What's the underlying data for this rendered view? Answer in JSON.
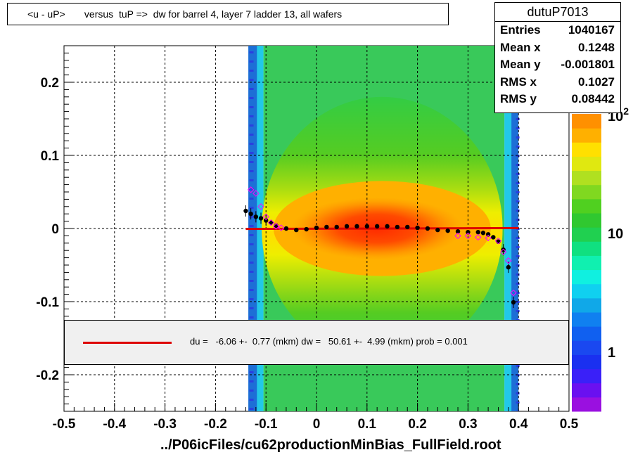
{
  "title": "<u - uP>       versus  tuP =>  dw for barrel 4, layer 7 ladder 13, all wafers",
  "stats": {
    "name": "dutuP7013",
    "rows": [
      {
        "label": "Entries",
        "value": "1040167"
      },
      {
        "label": "Mean x",
        "value": "0.1248"
      },
      {
        "label": "Mean y",
        "value": "-0.001801"
      },
      {
        "label": "RMS x",
        "value": "0.1027"
      },
      {
        "label": "RMS y",
        "value": "0.08442"
      }
    ]
  },
  "legend": {
    "text": "du =   -6.06 +-  0.77 (mkm) dw =   50.61 +-  4.99 (mkm) prob = 0.001",
    "line_color": "#dd0000"
  },
  "colors": {
    "fit_line": "#dd0000",
    "profile_points": "#000000",
    "open_markers": "#ff00ff"
  },
  "chart_data": {
    "type": "heatmap",
    "title": "<u - uP>       versus  tuP =>  dw for barrel 4, layer 7 ladder 13, all wafers",
    "xlabel": "../P06icFiles/cu62productionMinBias_FullField.root",
    "ylabel": "",
    "xlim": [
      -0.5,
      0.5
    ],
    "ylim": [
      -0.25,
      0.25
    ],
    "x_ticks": [
      "-0.5",
      "-0.4",
      "-0.3",
      "-0.2",
      "-0.1",
      "0",
      "0.1",
      "0.2",
      "0.3",
      "0.4",
      "0.5"
    ],
    "y_ticks": [
      "0.2",
      "0.1",
      "0",
      "-0.1",
      "-0.2"
    ],
    "grid": true,
    "color_scale": {
      "type": "log",
      "labels": [
        "1",
        "10",
        "10^2"
      ]
    },
    "fit_line": {
      "x": [
        -0.14,
        0.4
      ],
      "y": [
        -0.0006,
        0.0006
      ]
    },
    "profile": {
      "x": [
        -0.14,
        -0.13,
        -0.12,
        -0.11,
        -0.1,
        -0.09,
        -0.08,
        -0.06,
        -0.04,
        -0.02,
        0.0,
        0.02,
        0.04,
        0.06,
        0.08,
        0.1,
        0.12,
        0.14,
        0.16,
        0.18,
        0.2,
        0.22,
        0.24,
        0.26,
        0.28,
        0.3,
        0.32,
        0.33,
        0.34,
        0.35,
        0.36,
        0.37,
        0.38,
        0.39
      ],
      "y": [
        0.024,
        0.02,
        0.016,
        0.014,
        0.011,
        0.008,
        0.004,
        0.0,
        -0.002,
        -0.001,
        0.001,
        0.002,
        0.002,
        0.003,
        0.003,
        0.003,
        0.003,
        0.003,
        0.002,
        0.002,
        0.001,
        0.0,
        -0.002,
        -0.003,
        -0.004,
        -0.005,
        -0.005,
        -0.006,
        -0.008,
        -0.012,
        -0.018,
        -0.029,
        -0.053,
        -0.101
      ]
    },
    "open_points": {
      "x": [
        -0.13,
        -0.12,
        -0.11,
        -0.1,
        -0.09,
        -0.08,
        -0.07,
        0.28,
        0.3,
        0.32,
        0.34,
        0.36,
        0.37,
        0.38,
        0.39
      ],
      "y": [
        0.053,
        0.048,
        0.03,
        0.016,
        0.008,
        0.003,
        0.001,
        -0.01,
        -0.01,
        -0.012,
        -0.013,
        -0.017,
        -0.032,
        -0.044,
        -0.088
      ]
    }
  }
}
